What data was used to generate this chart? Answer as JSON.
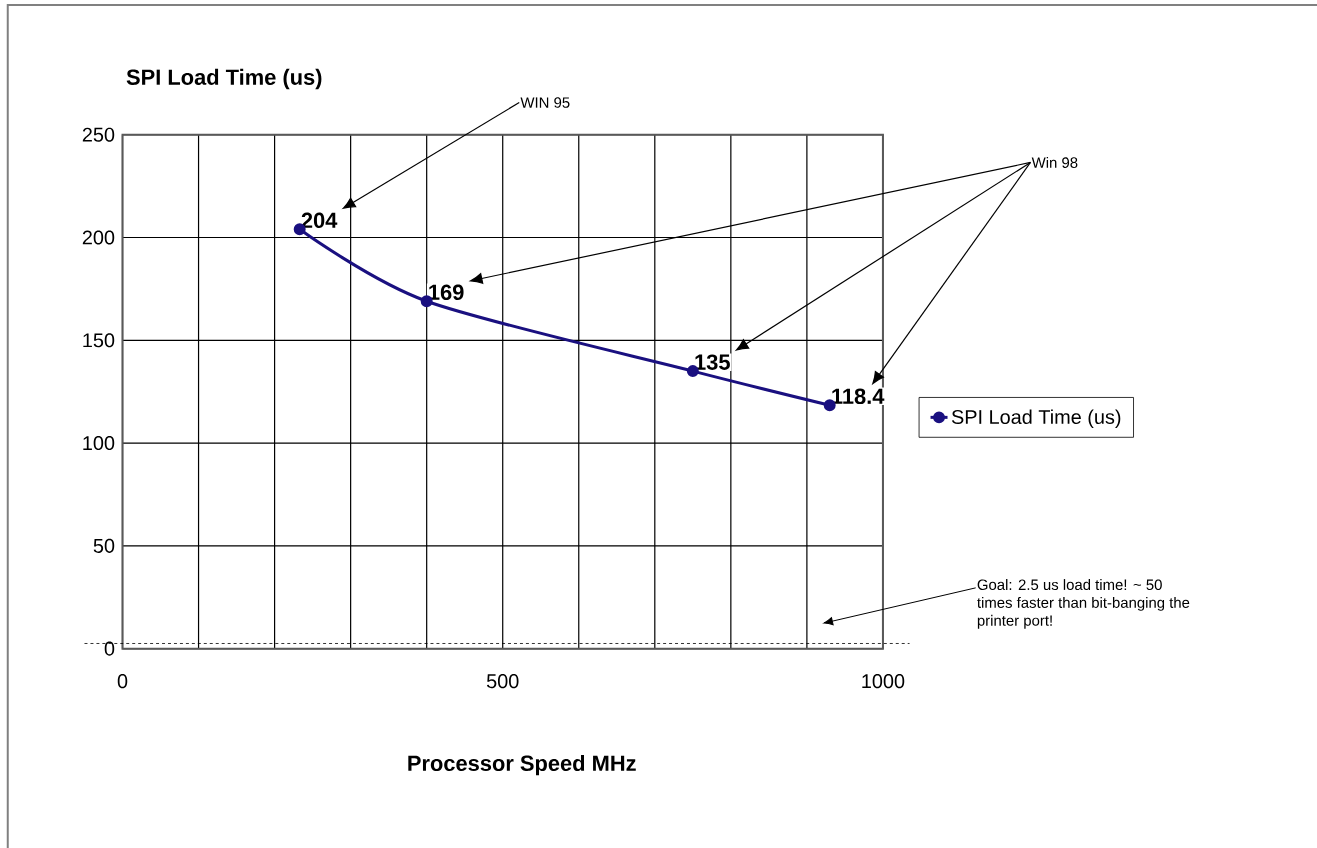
{
  "chart_data": {
    "type": "line",
    "title": "SPI Load Time (us)",
    "xlabel": "Processor Speed MHz",
    "x": [
      233,
      400,
      750,
      930
    ],
    "series": [
      {
        "name": "SPI Load Time (us)",
        "color": "#1a1080",
        "values": [
          204,
          169,
          135,
          118.4
        ]
      }
    ],
    "xlim": [
      0,
      1000
    ],
    "xticks": [
      0,
      {
        "value": 100,
        "label": null
      },
      {
        "value": 200,
        "label": null
      },
      {
        "value": 300,
        "label": null
      },
      {
        "value": 400,
        "label": null
      },
      500,
      {
        "value": 600,
        "label": null
      },
      {
        "value": 700,
        "label": null
      },
      {
        "value": 800,
        "label": null
      },
      {
        "value": 900,
        "label": null
      },
      1000
    ],
    "ylim": [
      0,
      250
    ],
    "yticks": [
      0,
      50,
      100,
      150,
      200,
      250
    ],
    "grid": true,
    "legend": "right",
    "marker": "circle",
    "line_style": "solid",
    "data_labels": true,
    "ref_lines": [
      {
        "axis": "y",
        "value": 2.5,
        "label": "Goal: 2.5 us load time! ~ 50 times faster than bit-banging the printer port!",
        "line_style": "dashed"
      }
    ],
    "annotations": [
      "WIN 95",
      "Win 98"
    ]
  }
}
